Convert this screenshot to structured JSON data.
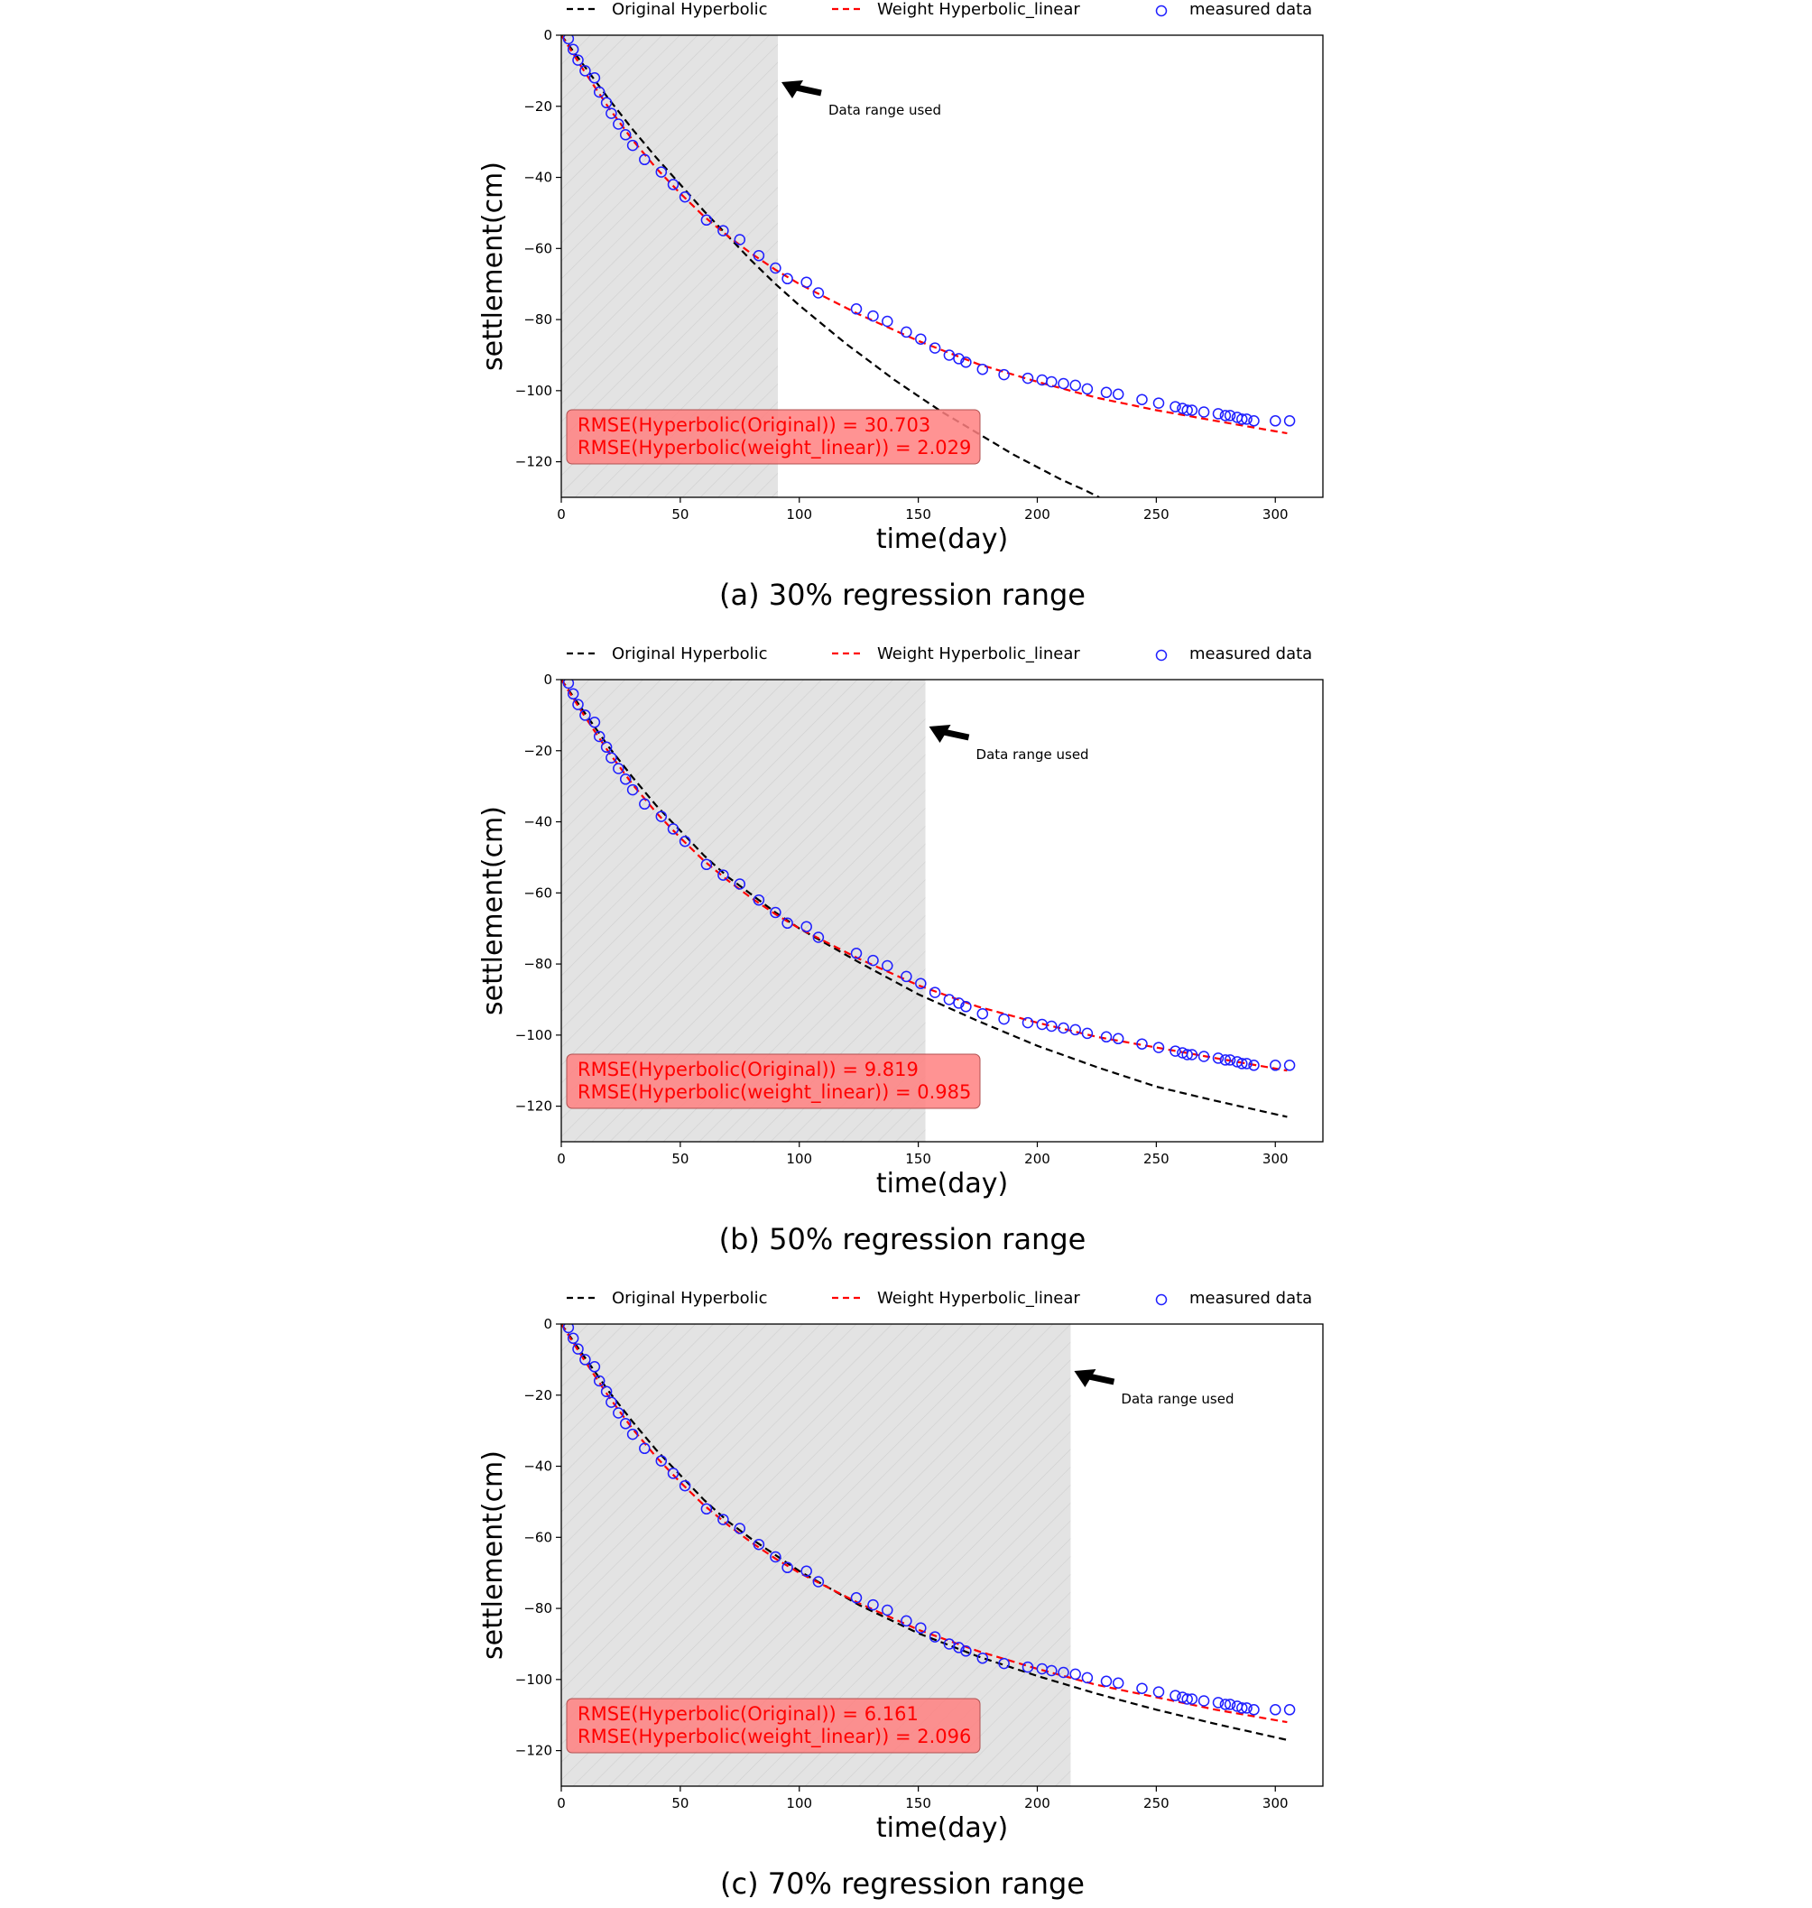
{
  "legend": {
    "original": "Original Hyperbolic",
    "weighted": "Weight Hyperbolic_linear",
    "measured": "measured data"
  },
  "colors": {
    "original": "#000000",
    "weighted": "#ff0000",
    "measured": "#1f1fff",
    "shade": "#e3e3e3",
    "rmse_box": "#ff8080"
  },
  "measured": {
    "time": [
      3,
      5,
      7,
      10,
      14,
      16,
      19,
      21,
      24,
      27,
      30,
      35,
      42,
      47,
      52,
      61,
      68,
      75,
      83,
      90,
      95,
      103,
      108,
      124,
      131,
      137,
      145,
      151,
      157,
      163,
      167,
      170,
      177,
      186,
      196,
      202,
      206,
      211,
      216,
      221,
      229,
      234,
      244,
      251,
      258,
      261,
      263,
      265,
      270,
      276,
      279,
      281,
      284,
      286,
      288,
      291,
      300,
      306
    ],
    "settlement": [
      -1,
      -4,
      -7,
      -10,
      -12,
      -16,
      -19,
      -22,
      -25,
      -28,
      -31,
      -35,
      -38.5,
      -42,
      -45.5,
      -52,
      -55,
      -57.5,
      -62,
      -65.5,
      -68.5,
      -69.5,
      -72.5,
      -77,
      -79,
      -80.5,
      -83.5,
      -85.5,
      -88,
      -90,
      -91,
      -92,
      -94,
      -95.5,
      -96.5,
      -97,
      -97.5,
      -98,
      -98.5,
      -99.5,
      -100.5,
      -101,
      -102.5,
      -103.5,
      -104.5,
      -105,
      -105.5,
      -105.5,
      -106,
      -106.5,
      -107,
      -107,
      -107.5,
      -108,
      -108,
      -108.5,
      -108.5,
      -108.5
    ]
  },
  "chart_data": [
    {
      "type": "line",
      "caption": "(a) 30% regression range",
      "xlabel": "time(day)",
      "ylabel": "settlement(cm)",
      "xlim": [
        0,
        320
      ],
      "ylim": [
        -130,
        0
      ],
      "xticks": [
        0,
        50,
        100,
        150,
        200,
        250,
        300
      ],
      "yticks": [
        0,
        -20,
        -40,
        -60,
        -80,
        -100,
        -120
      ],
      "shaded_range": [
        0,
        91
      ],
      "annotation": "Data range used",
      "rmse_lines": [
        "RMSE(Hyperbolic(Original)) = 30.703",
        "RMSE(Hyperbolic(weight_linear)) = 2.029"
      ],
      "series": [
        {
          "name": "Original Hyperbolic",
          "style": "dashed",
          "x": [
            0,
            10,
            20,
            30,
            40,
            50,
            60,
            70,
            80,
            90,
            100,
            110,
            120,
            130,
            140,
            150,
            160,
            170,
            180,
            190,
            200,
            210,
            220,
            226
          ],
          "y": [
            0,
            -9,
            -18,
            -26.5,
            -34.5,
            -42,
            -49.5,
            -56.5,
            -63.5,
            -70,
            -76,
            -81.5,
            -87,
            -92,
            -97,
            -101.5,
            -106,
            -110,
            -114,
            -118,
            -121.5,
            -125,
            -128,
            -130
          ]
        },
        {
          "name": "Weight Hyperbolic_linear",
          "style": "dashed",
          "x": [
            0,
            10,
            20,
            30,
            40,
            50,
            60,
            70,
            80,
            90,
            100,
            125,
            150,
            175,
            200,
            225,
            250,
            275,
            305
          ],
          "y": [
            0,
            -10.5,
            -20.5,
            -29.5,
            -37.5,
            -44.5,
            -51,
            -56.5,
            -61.5,
            -66,
            -70,
            -78.5,
            -86,
            -92.5,
            -97.5,
            -102,
            -105.5,
            -108.5,
            -112
          ]
        },
        {
          "name": "measured data",
          "style": "markers",
          "ref": "measured"
        }
      ]
    },
    {
      "type": "line",
      "caption": "(b) 50% regression range",
      "xlabel": "time(day)",
      "ylabel": "settlement(cm)",
      "xlim": [
        0,
        320
      ],
      "ylim": [
        -130,
        0
      ],
      "xticks": [
        0,
        50,
        100,
        150,
        200,
        250,
        300
      ],
      "yticks": [
        0,
        -20,
        -40,
        -60,
        -80,
        -100,
        -120
      ],
      "shaded_range": [
        0,
        153
      ],
      "annotation": "Data range used",
      "rmse_lines": [
        "RMSE(Hyperbolic(Original)) = 9.819",
        "RMSE(Hyperbolic(weight_linear)) = 0.985"
      ],
      "series": [
        {
          "name": "Original Hyperbolic",
          "style": "dashed",
          "x": [
            0,
            10,
            20,
            30,
            40,
            50,
            60,
            70,
            80,
            90,
            100,
            125,
            150,
            175,
            200,
            225,
            250,
            275,
            305
          ],
          "y": [
            0,
            -9.5,
            -19,
            -27.5,
            -35.5,
            -42.5,
            -49.5,
            -55.5,
            -60.5,
            -65.5,
            -70,
            -79.5,
            -88.5,
            -96,
            -103,
            -109,
            -114.5,
            -118.5,
            -123
          ]
        },
        {
          "name": "Weight Hyperbolic_linear",
          "style": "dashed",
          "x": [
            0,
            10,
            20,
            30,
            40,
            50,
            60,
            70,
            80,
            90,
            100,
            125,
            150,
            175,
            200,
            225,
            250,
            275,
            305
          ],
          "y": [
            0,
            -10.5,
            -20.5,
            -29.5,
            -37.5,
            -44.5,
            -51,
            -56.5,
            -61.5,
            -66,
            -70,
            -78.5,
            -86,
            -92,
            -96.5,
            -100.5,
            -103.5,
            -106.5,
            -110
          ]
        },
        {
          "name": "measured data",
          "style": "markers",
          "ref": "measured"
        }
      ]
    },
    {
      "type": "line",
      "caption": "(c) 70% regression range",
      "xlabel": "time(day)",
      "ylabel": "settlement(cm)",
      "xlim": [
        0,
        320
      ],
      "ylim": [
        -130,
        0
      ],
      "xticks": [
        0,
        50,
        100,
        150,
        200,
        250,
        300
      ],
      "yticks": [
        0,
        -20,
        -40,
        -60,
        -80,
        -100,
        -120
      ],
      "shaded_range": [
        0,
        214
      ],
      "annotation": "Data range used",
      "rmse_lines": [
        "RMSE(Hyperbolic(Original)) = 6.161",
        "RMSE(Hyperbolic(weight_linear)) = 2.096"
      ],
      "series": [
        {
          "name": "Original Hyperbolic",
          "style": "dashed",
          "x": [
            0,
            10,
            20,
            30,
            40,
            50,
            60,
            70,
            80,
            90,
            100,
            125,
            150,
            175,
            200,
            225,
            250,
            275,
            305
          ],
          "y": [
            0,
            -9.5,
            -19,
            -27.5,
            -35.5,
            -42.5,
            -49.5,
            -55.5,
            -60.5,
            -65,
            -69.5,
            -79,
            -87,
            -93.5,
            -99,
            -104,
            -108.5,
            -112.5,
            -117
          ]
        },
        {
          "name": "Weight Hyperbolic_linear",
          "style": "dashed",
          "x": [
            0,
            10,
            20,
            30,
            40,
            50,
            60,
            70,
            80,
            90,
            100,
            125,
            150,
            175,
            200,
            225,
            250,
            275,
            305
          ],
          "y": [
            0,
            -10.5,
            -20.5,
            -29.5,
            -37.5,
            -44.5,
            -51,
            -56.5,
            -61.5,
            -66,
            -70,
            -78.5,
            -86,
            -92,
            -97,
            -101.5,
            -105,
            -108.5,
            -112
          ]
        },
        {
          "name": "measured data",
          "style": "markers",
          "ref": "measured"
        }
      ]
    }
  ]
}
